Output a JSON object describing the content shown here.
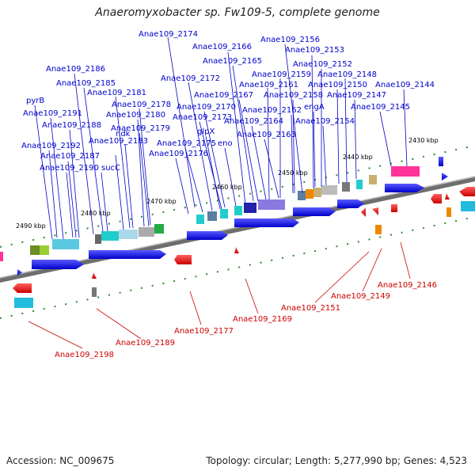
{
  "header": {
    "title": "Anaeromyxobacter sp. Fw109-5, complete genome"
  },
  "footer": {
    "accession": "Accession: NC_009675",
    "summary": "Topology: circular; Length: 5,277,990 bp; Genes: 4,523"
  },
  "colors": {
    "forward_gene": "#0000ee",
    "reverse_gene": "#ee0000",
    "forward_label": "#0000cc",
    "reverse_label": "#cc0000",
    "backbone": "#888888",
    "tick": "#2a8a2a"
  },
  "ticks": [
    "2430 kbp",
    "2440 kbp",
    "2450 kbp",
    "2460 kbp",
    "2470 kbp",
    "2480 kbp",
    "2490 kbp"
  ],
  "forward_labels": [
    "Anae109_2174",
    "Anae109_2156",
    "Anae109_2166",
    "Anae109_2153",
    "Anae109_2165",
    "Anae109_2152",
    "Anae109_2186",
    "Anae109_2148",
    "Anae109_2172",
    "Anae109_2185",
    "Anae109_2161",
    "Anae109_2159",
    "Anae109_2150",
    "Anae109_2144",
    "Anae109_2181",
    "Anae109_2167",
    "Anae109_2158",
    "Anae109_2147",
    "pyrB",
    "Anae109_2178",
    "engA",
    "Anae109_2191",
    "Anae109_2170",
    "Anae109_2162",
    "Anae109_2145",
    "Anae109_2180",
    "Anae109_2173",
    "Anae109_2188",
    "Anae109_2164",
    "Anae109_2154",
    "Anae109_2179",
    "glpX",
    "Anae109_2183",
    "ndk",
    "Anae109_2163",
    "Anae109_2192",
    "Anae109_2175",
    "eno",
    "Anae109_2187",
    "Anae109_2176",
    "Anae109_2190",
    "sucC"
  ],
  "reverse_labels": [
    "Anae109_2146",
    "Anae109_2149",
    "Anae109_2151",
    "Anae109_2169",
    "Anae109_2177",
    "Anae109_2189",
    "Anae109_2198"
  ]
}
